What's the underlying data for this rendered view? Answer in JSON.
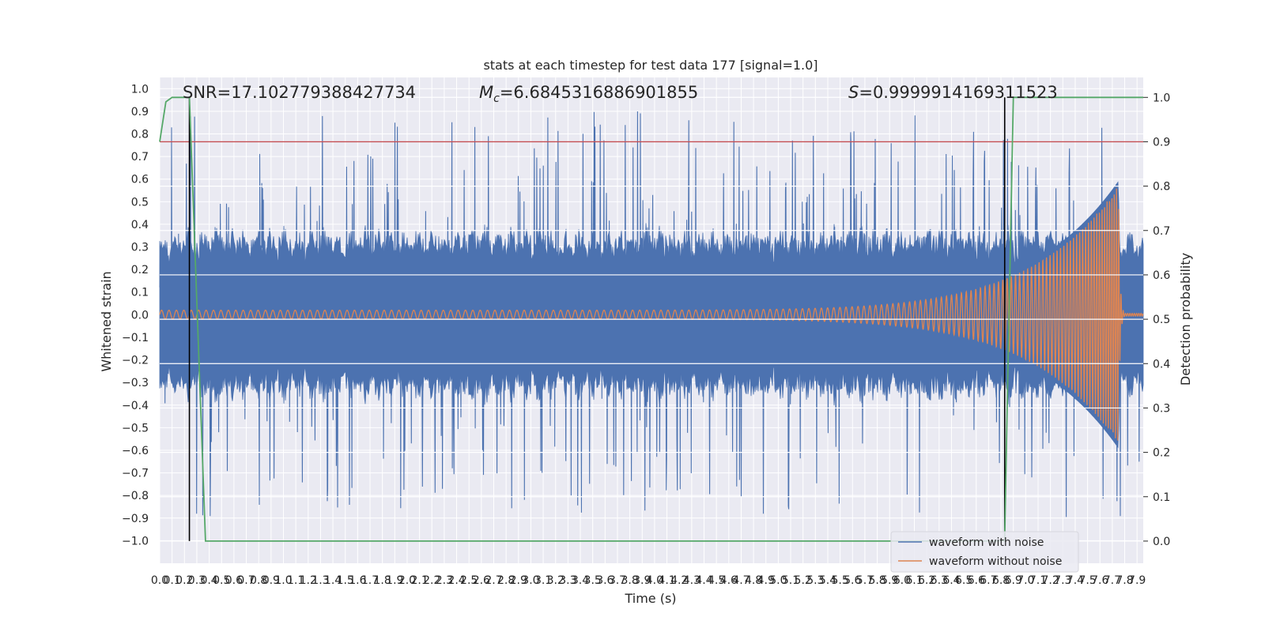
{
  "chart_data": {
    "type": "line",
    "title": "stats at each timestep for test data 177 [signal=1.0]",
    "xlabel": "Time (s)",
    "ylabel": "Whitened strain",
    "y2label": "Detection probability",
    "xlim": [
      0.0,
      7.95
    ],
    "ylim": [
      -1.1,
      1.05
    ],
    "y2lim": [
      -0.05,
      1.045
    ],
    "x_ticks": [
      "0.0",
      "0.1",
      "0.2",
      "0.3",
      "0.4",
      "0.5",
      "0.6",
      "0.7",
      "0.8",
      "0.9",
      "1.0",
      "1.1",
      "1.2",
      "1.3",
      "1.4",
      "1.5",
      "1.6",
      "1.7",
      "1.8",
      "1.9",
      "2.0",
      "2.1",
      "2.2",
      "2.3",
      "2.4",
      "2.5",
      "2.6",
      "2.7",
      "2.8",
      "2.9",
      "3.0",
      "3.1",
      "3.2",
      "3.3",
      "3.4",
      "3.5",
      "3.6",
      "3.7",
      "3.8",
      "3.9",
      "4.0",
      "4.1",
      "4.2",
      "4.3",
      "4.4",
      "4.5",
      "4.6",
      "4.7",
      "4.8",
      "4.9",
      "5.0",
      "5.1",
      "5.2",
      "5.3",
      "5.4",
      "5.5",
      "5.6",
      "5.7",
      "5.8",
      "5.9",
      "6.0",
      "6.1",
      "6.2",
      "6.3",
      "6.4",
      "6.5",
      "6.6",
      "6.7",
      "6.8",
      "6.9",
      "7.0",
      "7.1",
      "7.2",
      "7.3",
      "7.4",
      "7.5",
      "7.6",
      "7.7",
      "7.8",
      "7.9"
    ],
    "y_ticks": [
      "1.0",
      "0.9",
      "0.8",
      "0.7",
      "0.6",
      "0.5",
      "0.4",
      "0.3",
      "0.2",
      "0.1",
      "0.0",
      "−0.1",
      "−0.2",
      "−0.3",
      "−0.4",
      "−0.5",
      "−0.6",
      "−0.7",
      "−0.8",
      "−0.9",
      "−1.0"
    ],
    "y2_ticks": [
      "1.0",
      "0.9",
      "0.8",
      "0.7",
      "0.6",
      "0.5",
      "0.4",
      "0.3",
      "0.2",
      "0.1",
      "0.0"
    ],
    "annotations": {
      "snr": "SNR=17.102779388427734",
      "mc_symbol": "M",
      "mc_sub": "c",
      "mc_value": "=6.6845316886901855",
      "s_symbol": "S",
      "s_value": "=0.9999914169311523"
    },
    "threshold_line": {
      "y2": 0.9,
      "color": "#c44e52"
    },
    "event_lines": [
      {
        "x": 0.24,
        "y2_from": 0.0,
        "y2_to": 1.0
      },
      {
        "x": 6.83,
        "y2_from": 0.0,
        "y2_to": 1.0
      }
    ],
    "series": [
      {
        "name": "waveform with noise",
        "color": "#4c72b0",
        "description": "noisy whitened strain, envelope ~±0.45 with spikes to ~±0.95"
      },
      {
        "name": "waveform without noise",
        "color": "#dd8452",
        "description": "chirp: amplitude 0.02 at start rising to ~0.57 at 7.75 s, ringdown after",
        "chirp": {
          "start_amp": 0.02,
          "peak_amp": 0.57,
          "merger_time": 7.75,
          "start_period": 0.06,
          "end_period": 0.018
        }
      },
      {
        "name": "detection probability",
        "color": "#55a868",
        "axis": "y2",
        "points": [
          [
            0.0,
            0.9
          ],
          [
            0.05,
            0.99
          ],
          [
            0.1,
            1.0
          ],
          [
            0.24,
            1.0
          ],
          [
            0.37,
            0.0
          ],
          [
            6.83,
            0.0
          ],
          [
            6.85,
            0.3
          ],
          [
            6.9,
            1.0
          ],
          [
            7.95,
            1.0
          ]
        ]
      }
    ],
    "legend": {
      "position": "lower-right",
      "entries": [
        "waveform with noise",
        "waveform without noise"
      ]
    },
    "colors": {
      "plot_bg": "#eaeaf2",
      "grid": "#ffffff",
      "noisy": "#4c72b0",
      "clean": "#dd8452",
      "prob": "#55a868",
      "threshold": "#c44e52",
      "event": "#000000"
    }
  }
}
